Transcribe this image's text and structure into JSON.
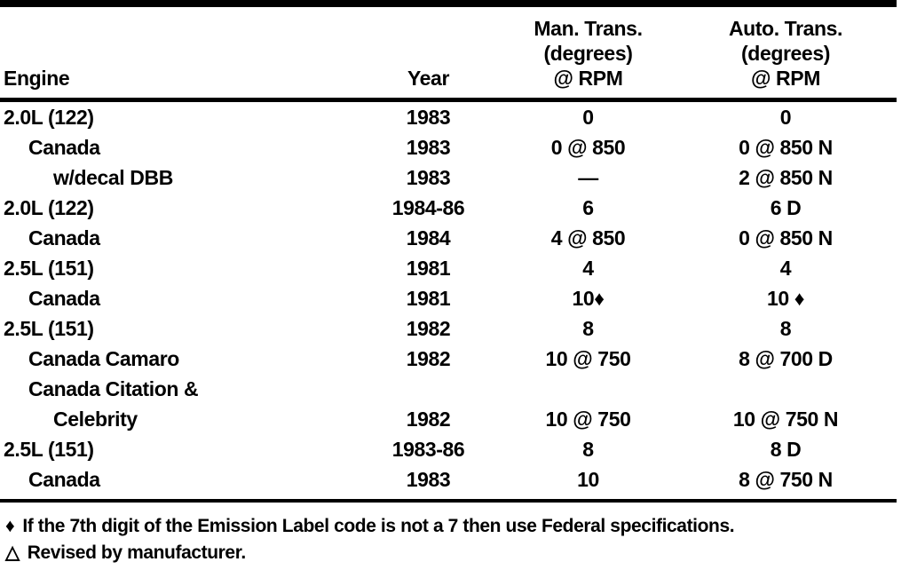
{
  "table": {
    "header": {
      "engine": "Engine",
      "year": "Year",
      "man_lines": [
        "Man. Trans.",
        "(degrees)",
        "@ RPM"
      ],
      "auto_lines": [
        "Auto. Trans.",
        "(degrees)",
        "@ RPM"
      ]
    },
    "rows": [
      {
        "engine": "2.0L (122)",
        "indent": 0,
        "year": "1983",
        "man": "0",
        "auto": "0"
      },
      {
        "engine": "Canada",
        "indent": 1,
        "year": "1983",
        "man": "0 @ 850",
        "auto": "0 @ 850 N"
      },
      {
        "engine": "w/decal DBB",
        "indent": 2,
        "year": "1983",
        "man": "—",
        "auto": "2 @ 850 N"
      },
      {
        "engine": "2.0L (122)",
        "indent": 0,
        "year": "1984-86",
        "man": "6",
        "auto": "6 D"
      },
      {
        "engine": "Canada",
        "indent": 1,
        "year": "1984",
        "man": "4 @ 850",
        "auto": "0 @ 850 N"
      },
      {
        "engine": "2.5L (151)",
        "indent": 0,
        "year": "1981",
        "man": "4",
        "auto": "4"
      },
      {
        "engine": "Canada",
        "indent": 1,
        "year": "1981",
        "man": "10♦",
        "auto": "10 ♦"
      },
      {
        "engine": "2.5L (151)",
        "indent": 0,
        "year": "1982",
        "man": "8",
        "auto": "8"
      },
      {
        "engine": "Canada Camaro",
        "indent": 1,
        "year": "1982",
        "man": "10 @ 750",
        "auto": "8 @ 700 D"
      },
      {
        "engine": "Canada Citation &",
        "indent": 1,
        "year": "",
        "man": "",
        "auto": ""
      },
      {
        "engine": "Celebrity",
        "indent": 2,
        "year": "1982",
        "man": "10 @ 750",
        "auto": "10 @ 750 N"
      },
      {
        "engine": "2.5L (151)",
        "indent": 0,
        "year": "1983-86",
        "man": "8",
        "auto": "8 D"
      },
      {
        "engine": "Canada",
        "indent": 1,
        "year": "1983",
        "man": "10",
        "auto": "8 @ 750 N"
      }
    ]
  },
  "footnotes": [
    {
      "symbol": "♦",
      "text": "If the 7th digit of the Emission Label code is not a 7 then use Federal specifications."
    },
    {
      "symbol": "△",
      "text": "Revised by manufacturer."
    }
  ]
}
